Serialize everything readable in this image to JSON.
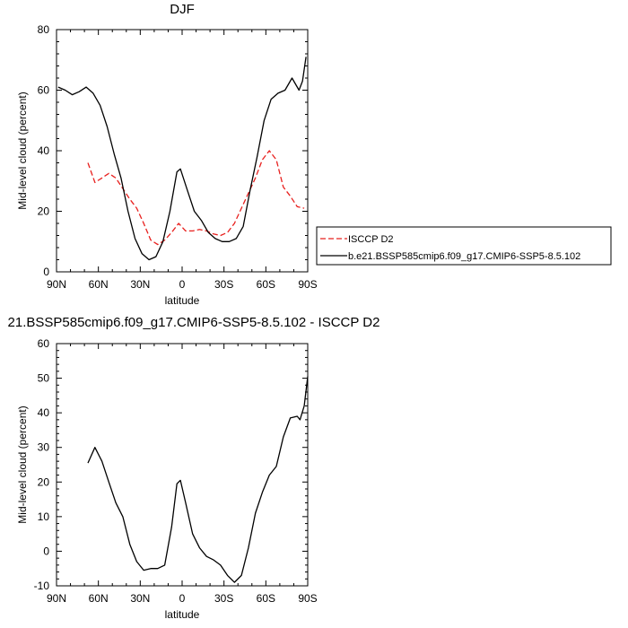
{
  "chart_data": [
    {
      "type": "line",
      "title": "DJF",
      "xlabel": "latitude",
      "ylabel": "Mid-level cloud (percent)",
      "xlim": [
        90,
        -90
      ],
      "ylim": [
        0,
        80
      ],
      "xticks": [
        90,
        60,
        30,
        0,
        -30,
        -60,
        -90
      ],
      "xtick_labels": [
        "90N",
        "60N",
        "30N",
        "0",
        "30S",
        "60S",
        "90S"
      ],
      "yticks": [
        0,
        20,
        40,
        60,
        80
      ],
      "ytick_labels": [
        "0",
        "20",
        "40",
        "60",
        "80"
      ],
      "grid": false,
      "legend_position": "right",
      "series": [
        {
          "name": "ISCCP D2",
          "color": "#e8201e",
          "dash": "dashed",
          "points": [
            [
              67.5,
              36
            ],
            [
              62.5,
              29.5
            ],
            [
              57.5,
              31
            ],
            [
              52.5,
              32.5
            ],
            [
              47.5,
              31
            ],
            [
              42.5,
              27.5
            ],
            [
              37.5,
              24
            ],
            [
              32.5,
              21
            ],
            [
              27.5,
              16
            ],
            [
              22.5,
              10.5
            ],
            [
              17.5,
              9
            ],
            [
              12.5,
              10.5
            ],
            [
              7.5,
              13
            ],
            [
              2.5,
              16
            ],
            [
              -2.5,
              13.5
            ],
            [
              -7.5,
              13.5
            ],
            [
              -12.5,
              14
            ],
            [
              -17.5,
              13.5
            ],
            [
              -22.5,
              12.5
            ],
            [
              -27.5,
              12
            ],
            [
              -32.5,
              13
            ],
            [
              -37.5,
              16
            ],
            [
              -42.5,
              21
            ],
            [
              -47.5,
              26
            ],
            [
              -52.5,
              31
            ],
            [
              -57.5,
              37
            ],
            [
              -62.5,
              40
            ],
            [
              -67.5,
              37
            ],
            [
              -72.5,
              28
            ],
            [
              -77.5,
              25
            ],
            [
              -82.5,
              21.5
            ],
            [
              -87.5,
              21
            ]
          ]
        },
        {
          "name": "b.e21.BSSP585cmip6.f09_g17.CMIP6-SSP5-8.5.102",
          "color": "#000000",
          "dash": "solid",
          "points": [
            [
              88.75,
              61
            ],
            [
              83.75,
              60
            ],
            [
              78.75,
              58.5
            ],
            [
              73.75,
              59.5
            ],
            [
              68.75,
              61
            ],
            [
              63.75,
              59
            ],
            [
              58.75,
              55
            ],
            [
              53.75,
              48
            ],
            [
              48.75,
              39
            ],
            [
              43.75,
              31
            ],
            [
              38.75,
              20
            ],
            [
              33.75,
              11
            ],
            [
              28.75,
              6
            ],
            [
              23.75,
              4
            ],
            [
              18.75,
              5
            ],
            [
              13.75,
              10
            ],
            [
              8.75,
              20
            ],
            [
              3.75,
              33
            ],
            [
              1.25,
              34
            ],
            [
              -3.75,
              27
            ],
            [
              -8.75,
              20
            ],
            [
              -13.75,
              17
            ],
            [
              -18.75,
              13
            ],
            [
              -23.75,
              11
            ],
            [
              -28.75,
              10
            ],
            [
              -33.75,
              10
            ],
            [
              -38.75,
              11
            ],
            [
              -43.75,
              15
            ],
            [
              -48.75,
              27
            ],
            [
              -53.75,
              38
            ],
            [
              -58.75,
              50
            ],
            [
              -63.75,
              57
            ],
            [
              -68.75,
              59
            ],
            [
              -73.75,
              60
            ],
            [
              -78.75,
              64
            ],
            [
              -83.75,
              60
            ],
            [
              -86.25,
              63
            ],
            [
              -88.75,
              71
            ]
          ]
        }
      ]
    },
    {
      "type": "line",
      "title": "21.BSSP585cmip6.f09_g17.CMIP6-SSP5-8.5.102 - ISCCP D2",
      "xlabel": "latitude",
      "ylabel": "Mid-level cloud (percent)",
      "xlim": [
        90,
        -90
      ],
      "ylim": [
        -10,
        60
      ],
      "xticks": [
        90,
        60,
        30,
        0,
        -30,
        -60,
        -90
      ],
      "xtick_labels": [
        "90N",
        "60N",
        "30N",
        "0",
        "30S",
        "60S",
        "90S"
      ],
      "yticks": [
        -10,
        0,
        10,
        20,
        30,
        40,
        50,
        60
      ],
      "ytick_labels": [
        "-10",
        "0",
        "10",
        "20",
        "30",
        "40",
        "50",
        "60"
      ],
      "grid": false,
      "series": [
        {
          "color": "#000000",
          "dash": "solid",
          "points": [
            [
              67.5,
              25.5
            ],
            [
              62.5,
              30
            ],
            [
              57.5,
              26
            ],
            [
              52.5,
              20
            ],
            [
              47.5,
              14
            ],
            [
              42.5,
              10
            ],
            [
              37.5,
              2
            ],
            [
              32.5,
              -3
            ],
            [
              27.5,
              -5.5
            ],
            [
              22.5,
              -5
            ],
            [
              17.5,
              -5
            ],
            [
              12.5,
              -4
            ],
            [
              7.5,
              7
            ],
            [
              3.75,
              19.5
            ],
            [
              1.25,
              20.5
            ],
            [
              -2.5,
              14
            ],
            [
              -7.5,
              5
            ],
            [
              -12.5,
              1
            ],
            [
              -17.5,
              -1.5
            ],
            [
              -22.5,
              -2.5
            ],
            [
              -27.5,
              -4
            ],
            [
              -32.5,
              -7
            ],
            [
              -37.5,
              -9
            ],
            [
              -42.5,
              -7
            ],
            [
              -47.5,
              1
            ],
            [
              -52.5,
              11
            ],
            [
              -57.5,
              17
            ],
            [
              -62.5,
              22
            ],
            [
              -67.5,
              24.5
            ],
            [
              -72.5,
              33
            ],
            [
              -77.5,
              38.5
            ],
            [
              -82.5,
              39
            ],
            [
              -84.5,
              38
            ],
            [
              -87.5,
              42
            ],
            [
              -90,
              50.5
            ]
          ]
        }
      ]
    }
  ]
}
